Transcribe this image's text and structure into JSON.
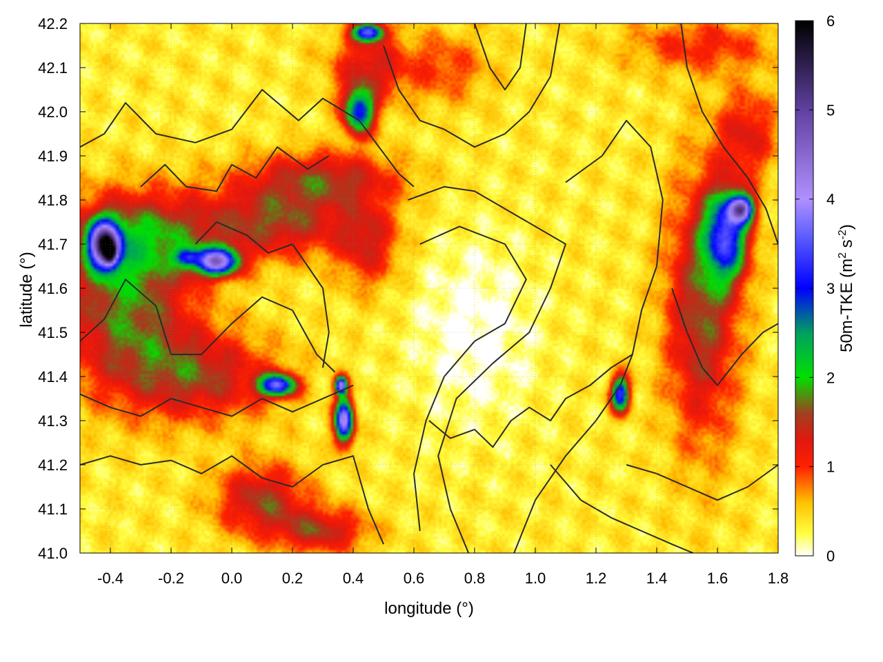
{
  "chart_data": {
    "type": "heatmap",
    "xlabel": "longitude (°)",
    "ylabel": "latitude (°)",
    "xlim": [
      -0.5,
      1.8
    ],
    "ylim": [
      41.0,
      42.2
    ],
    "x_ticks": [
      "-0.4",
      "-0.2",
      "0.0",
      "0.2",
      "0.4",
      "0.6",
      "0.8",
      "1.0",
      "1.2",
      "1.4",
      "1.6",
      "1.8"
    ],
    "x_tick_values": [
      -0.4,
      -0.2,
      0.0,
      0.2,
      0.4,
      0.6,
      0.8,
      1.0,
      1.2,
      1.4,
      1.6,
      1.8
    ],
    "y_ticks": [
      "41.0",
      "41.1",
      "41.2",
      "41.3",
      "41.4",
      "41.5",
      "41.6",
      "41.7",
      "41.8",
      "41.9",
      "42.0",
      "42.1",
      "42.2"
    ],
    "y_tick_values": [
      41.0,
      41.1,
      41.2,
      41.3,
      41.4,
      41.5,
      41.6,
      41.7,
      41.8,
      41.9,
      42.0,
      42.1,
      42.2
    ],
    "grid": true,
    "colorbar": {
      "label": "50m-TKE (m² s⁻²)",
      "label_main": "50m-TKE (m",
      "label_sup1": "2",
      "label_mid": " s",
      "label_sup2": "-2",
      "label_end": ")",
      "range": [
        0,
        6
      ],
      "ticks": [
        "0",
        "1",
        "2",
        "3",
        "4",
        "5",
        "6"
      ],
      "tick_values": [
        0,
        1,
        2,
        3,
        4,
        5,
        6
      ],
      "stops": [
        {
          "v": 0.0,
          "color": "#ffffff"
        },
        {
          "v": 0.25,
          "color": "#ffff40"
        },
        {
          "v": 0.6,
          "color": "#ffc000"
        },
        {
          "v": 1.0,
          "color": "#ff2000"
        },
        {
          "v": 1.3,
          "color": "#e01810"
        },
        {
          "v": 1.6,
          "color": "#a04020"
        },
        {
          "v": 2.0,
          "color": "#00e000"
        },
        {
          "v": 2.5,
          "color": "#00a060"
        },
        {
          "v": 3.0,
          "color": "#0000ff"
        },
        {
          "v": 3.6,
          "color": "#6060ff"
        },
        {
          "v": 4.0,
          "color": "#b090ff"
        },
        {
          "v": 5.0,
          "color": "#6040a0"
        },
        {
          "v": 6.0,
          "color": "#000000"
        }
      ]
    },
    "field_features": [
      {
        "lon": -0.35,
        "lat": 41.55,
        "sx": 0.22,
        "sy": 0.18,
        "v": 1.35
      },
      {
        "lon": -0.3,
        "lat": 41.72,
        "sx": 0.25,
        "sy": 0.1,
        "v": 1.2
      },
      {
        "lon": -0.42,
        "lat": 41.7,
        "sx": 0.05,
        "sy": 0.05,
        "v": 4.2
      },
      {
        "lon": -0.4,
        "lat": 41.68,
        "sx": 0.02,
        "sy": 0.025,
        "v": 2.5
      },
      {
        "lon": -0.05,
        "lat": 41.66,
        "sx": 0.07,
        "sy": 0.03,
        "v": 3.6
      },
      {
        "lon": -0.15,
        "lat": 41.67,
        "sx": 0.04,
        "sy": 0.02,
        "v": 1.4
      },
      {
        "lon": -0.1,
        "lat": 41.4,
        "sx": 0.25,
        "sy": 0.1,
        "v": 1.1
      },
      {
        "lon": 0.15,
        "lat": 41.75,
        "sx": 0.25,
        "sy": 0.08,
        "v": 1.2
      },
      {
        "lon": 0.3,
        "lat": 41.85,
        "sx": 0.25,
        "sy": 0.06,
        "v": 1.1
      },
      {
        "lon": 0.45,
        "lat": 41.7,
        "sx": 0.1,
        "sy": 0.1,
        "v": 0.9
      },
      {
        "lon": 0.15,
        "lat": 41.38,
        "sx": 0.06,
        "sy": 0.025,
        "v": 3.0
      },
      {
        "lon": 0.37,
        "lat": 41.3,
        "sx": 0.03,
        "sy": 0.05,
        "v": 3.8
      },
      {
        "lon": 0.36,
        "lat": 41.38,
        "sx": 0.02,
        "sy": 0.02,
        "v": 3.5
      },
      {
        "lon": 0.1,
        "lat": 41.12,
        "sx": 0.15,
        "sy": 0.08,
        "v": 1.2
      },
      {
        "lon": 0.3,
        "lat": 41.05,
        "sx": 0.15,
        "sy": 0.05,
        "v": 1.1
      },
      {
        "lon": 0.45,
        "lat": 42.1,
        "sx": 0.12,
        "sy": 0.08,
        "v": 1.0
      },
      {
        "lon": 0.42,
        "lat": 42.0,
        "sx": 0.05,
        "sy": 0.05,
        "v": 2.6
      },
      {
        "lon": 0.45,
        "lat": 42.18,
        "sx": 0.05,
        "sy": 0.02,
        "v": 3.0
      },
      {
        "lon": 1.63,
        "lat": 41.72,
        "sx": 0.07,
        "sy": 0.1,
        "v": 2.6
      },
      {
        "lon": 1.68,
        "lat": 41.78,
        "sx": 0.04,
        "sy": 0.03,
        "v": 3.4
      },
      {
        "lon": 1.55,
        "lat": 41.55,
        "sx": 0.12,
        "sy": 0.3,
        "v": 1.3
      },
      {
        "lon": 1.28,
        "lat": 41.36,
        "sx": 0.03,
        "sy": 0.04,
        "v": 3.0
      },
      {
        "lon": 1.7,
        "lat": 41.95,
        "sx": 0.1,
        "sy": 0.1,
        "v": 0.9
      },
      {
        "lon": 0.7,
        "lat": 42.1,
        "sx": 0.15,
        "sy": 0.08,
        "v": 0.6
      },
      {
        "lon": 1.55,
        "lat": 42.15,
        "sx": 0.25,
        "sy": 0.06,
        "v": 0.7
      },
      {
        "lon": 0.8,
        "lat": 41.5,
        "sx": 0.2,
        "sy": 0.2,
        "v": -0.4
      }
    ],
    "contours": [
      [
        [
          -0.5,
          41.92
        ],
        [
          -0.42,
          41.95
        ],
        [
          -0.35,
          42.02
        ],
        [
          -0.25,
          41.95
        ],
        [
          -0.12,
          41.93
        ],
        [
          0.0,
          41.96
        ],
        [
          0.1,
          42.05
        ],
        [
          0.22,
          41.98
        ],
        [
          0.3,
          42.03
        ],
        [
          0.42,
          41.98
        ],
        [
          0.55,
          41.86
        ],
        [
          0.6,
          41.83
        ]
      ],
      [
        [
          -0.5,
          41.48
        ],
        [
          -0.42,
          41.53
        ],
        [
          -0.35,
          41.62
        ],
        [
          -0.25,
          41.56
        ],
        [
          -0.2,
          41.45
        ],
        [
          -0.1,
          41.45
        ],
        [
          0.0,
          41.52
        ],
        [
          0.1,
          41.58
        ],
        [
          0.2,
          41.55
        ],
        [
          0.28,
          41.45
        ],
        [
          0.34,
          41.41
        ]
      ],
      [
        [
          -0.3,
          41.83
        ],
        [
          -0.22,
          41.88
        ],
        [
          -0.15,
          41.83
        ],
        [
          -0.05,
          41.82
        ],
        [
          0.0,
          41.88
        ],
        [
          0.08,
          41.85
        ],
        [
          0.15,
          41.92
        ],
        [
          0.25,
          41.87
        ],
        [
          0.32,
          41.9
        ]
      ],
      [
        [
          -0.5,
          41.36
        ],
        [
          -0.4,
          41.33
        ],
        [
          -0.3,
          41.31
        ],
        [
          -0.2,
          41.35
        ],
        [
          -0.1,
          41.33
        ],
        [
          0.0,
          41.31
        ],
        [
          0.1,
          41.35
        ],
        [
          0.2,
          41.32
        ],
        [
          0.3,
          41.35
        ],
        [
          0.4,
          41.38
        ]
      ],
      [
        [
          -0.5,
          41.2
        ],
        [
          -0.4,
          41.22
        ],
        [
          -0.3,
          41.2
        ],
        [
          -0.2,
          41.21
        ],
        [
          -0.1,
          41.18
        ],
        [
          0.0,
          41.22
        ],
        [
          0.1,
          41.17
        ],
        [
          0.2,
          41.15
        ],
        [
          0.3,
          41.2
        ],
        [
          0.4,
          41.22
        ],
        [
          0.45,
          41.1
        ],
        [
          0.5,
          41.02
        ]
      ],
      [
        [
          0.58,
          41.8
        ],
        [
          0.7,
          41.83
        ],
        [
          0.8,
          41.82
        ],
        [
          0.95,
          41.76
        ],
        [
          1.1,
          41.7
        ],
        [
          1.05,
          41.6
        ],
        [
          0.98,
          41.5
        ],
        [
          0.86,
          41.43
        ],
        [
          0.74,
          41.35
        ],
        [
          0.68,
          41.22
        ],
        [
          0.72,
          41.1
        ],
        [
          0.78,
          41.0
        ]
      ],
      [
        [
          0.62,
          41.7
        ],
        [
          0.75,
          41.74
        ],
        [
          0.9,
          41.7
        ],
        [
          0.97,
          41.62
        ],
        [
          0.9,
          41.52
        ],
        [
          0.8,
          41.48
        ],
        [
          0.7,
          41.4
        ],
        [
          0.64,
          41.3
        ],
        [
          0.6,
          41.18
        ],
        [
          0.62,
          41.05
        ]
      ],
      [
        [
          1.1,
          41.84
        ],
        [
          1.22,
          41.9
        ],
        [
          1.3,
          41.98
        ],
        [
          1.38,
          41.92
        ],
        [
          1.42,
          41.8
        ],
        [
          1.4,
          41.65
        ],
        [
          1.35,
          41.55
        ],
        [
          1.32,
          41.45
        ],
        [
          1.28,
          41.38
        ],
        [
          1.2,
          41.3
        ],
        [
          1.1,
          41.22
        ],
        [
          1.0,
          41.12
        ],
        [
          0.93,
          41.0
        ]
      ],
      [
        [
          1.48,
          42.2
        ],
        [
          1.5,
          42.1
        ],
        [
          1.55,
          42.0
        ],
        [
          1.62,
          41.92
        ],
        [
          1.7,
          41.85
        ],
        [
          1.76,
          41.78
        ],
        [
          1.8,
          41.7
        ]
      ],
      [
        [
          1.45,
          41.6
        ],
        [
          1.5,
          41.5
        ],
        [
          1.55,
          41.42
        ],
        [
          1.6,
          41.38
        ],
        [
          1.68,
          41.45
        ],
        [
          1.75,
          41.5
        ],
        [
          1.8,
          41.52
        ]
      ],
      [
        [
          1.3,
          41.2
        ],
        [
          1.4,
          41.18
        ],
        [
          1.5,
          41.15
        ],
        [
          1.6,
          41.12
        ],
        [
          1.7,
          41.15
        ],
        [
          1.8,
          41.2
        ]
      ],
      [
        [
          1.05,
          41.2
        ],
        [
          1.15,
          41.12
        ],
        [
          1.25,
          41.08
        ],
        [
          1.35,
          41.05
        ],
        [
          1.45,
          41.02
        ],
        [
          1.52,
          41.0
        ]
      ],
      [
        [
          0.5,
          42.15
        ],
        [
          0.55,
          42.05
        ],
        [
          0.62,
          41.98
        ],
        [
          0.7,
          41.96
        ],
        [
          0.8,
          41.92
        ],
        [
          0.9,
          41.95
        ],
        [
          0.98,
          42.0
        ],
        [
          1.05,
          42.08
        ],
        [
          1.08,
          42.2
        ]
      ],
      [
        [
          0.8,
          42.2
        ],
        [
          0.85,
          42.1
        ],
        [
          0.9,
          42.05
        ],
        [
          0.95,
          42.1
        ],
        [
          0.97,
          42.2
        ]
      ],
      [
        [
          0.65,
          41.3
        ],
        [
          0.72,
          41.26
        ],
        [
          0.8,
          41.28
        ],
        [
          0.86,
          41.24
        ],
        [
          0.92,
          41.3
        ],
        [
          0.98,
          41.33
        ],
        [
          1.05,
          41.3
        ],
        [
          1.1,
          41.35
        ],
        [
          1.18,
          41.38
        ],
        [
          1.25,
          41.42
        ],
        [
          1.32,
          41.45
        ]
      ],
      [
        [
          -0.12,
          41.7
        ],
        [
          -0.05,
          41.75
        ],
        [
          0.05,
          41.72
        ],
        [
          0.12,
          41.68
        ],
        [
          0.2,
          41.7
        ],
        [
          0.25,
          41.65
        ],
        [
          0.3,
          41.6
        ],
        [
          0.32,
          41.5
        ],
        [
          0.3,
          41.42
        ]
      ]
    ]
  }
}
